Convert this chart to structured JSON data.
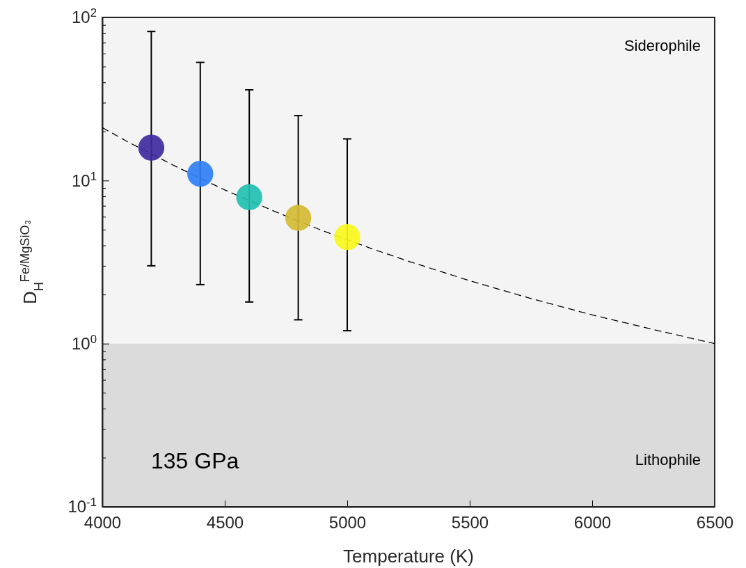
{
  "chart_data": {
    "type": "scatter",
    "xlabel": "Temperature (K)",
    "ylabel": "D$_{H}$$^{Fe/MgSiO₃}$",
    "log": "y",
    "xlim": [
      4000,
      6500
    ],
    "xticks": [
      4000,
      4500,
      5000,
      5500,
      6000,
      6500
    ],
    "ylim": [
      0.1,
      100
    ],
    "yticks": [
      {
        "value": 0.1,
        "label": "10$^{-1}$"
      },
      {
        "value": 0.2,
        "label": null
      },
      {
        "value": 0.3,
        "label": null
      },
      {
        "value": 0.4,
        "label": null
      },
      {
        "value": 0.5,
        "label": null
      },
      {
        "value": 0.6,
        "label": null
      },
      {
        "value": 0.7,
        "label": null
      },
      {
        "value": 0.8,
        "label": null
      },
      {
        "value": 0.9,
        "label": null
      },
      {
        "value": 1,
        "label": "10$^{0}$"
      },
      {
        "value": 2,
        "label": null
      },
      {
        "value": 3,
        "label": null
      },
      {
        "value": 4,
        "label": null
      },
      {
        "value": 5,
        "label": null
      },
      {
        "value": 6,
        "label": null
      },
      {
        "value": 7,
        "label": null
      },
      {
        "value": 8,
        "label": null
      },
      {
        "value": 9,
        "label": null
      },
      {
        "value": 10,
        "label": "10$^{1}$"
      },
      {
        "value": 20,
        "label": null
      },
      {
        "value": 30,
        "label": null
      },
      {
        "value": 40,
        "label": null
      },
      {
        "value": 50,
        "label": null
      },
      {
        "value": 60,
        "label": null
      },
      {
        "value": 70,
        "label": null
      },
      {
        "value": 80,
        "label": null
      },
      {
        "value": 90,
        "label": null
      },
      {
        "value": 100,
        "label": "10$^{2}$"
      }
    ],
    "bands": [
      {
        "axis": "y",
        "from": 1,
        "to": 100,
        "label": "Siderophile",
        "color": "#f4f4f4"
      },
      {
        "axis": "y",
        "from": 0.1,
        "to": 1,
        "label": "Lithophile",
        "color": "#dbdbdb"
      }
    ],
    "series": [
      {
        "type": "line",
        "color": "#000000",
        "line_style": "dashed",
        "x": [
          4000,
          4100,
          4300,
          4500,
          4700,
          4900,
          5100,
          5250,
          5500,
          5750,
          6000,
          6250,
          6500
        ],
        "values": [
          21.1,
          17.4,
          12.2,
          8.75,
          6.5,
          4.92,
          3.82,
          3.2,
          2.43,
          1.89,
          1.5,
          1.22,
          1.0
        ]
      },
      {
        "marker": "circle",
        "x": [
          4200,
          4400,
          4600,
          4800,
          5000
        ],
        "values": [
          15.9,
          11,
          7.9,
          5.9,
          4.5
        ],
        "colors": [
          "#3f2a9e",
          "#2f7ff5",
          "#21bfb0",
          "#d2ba33",
          "#f7f71a"
        ],
        "errors": [
          [
            3.0,
            82
          ],
          [
            2.3,
            53
          ],
          [
            1.8,
            36
          ],
          [
            1.4,
            25
          ],
          [
            1.2,
            18
          ]
        ]
      }
    ],
    "annotations": [
      "135 GPa"
    ]
  }
}
